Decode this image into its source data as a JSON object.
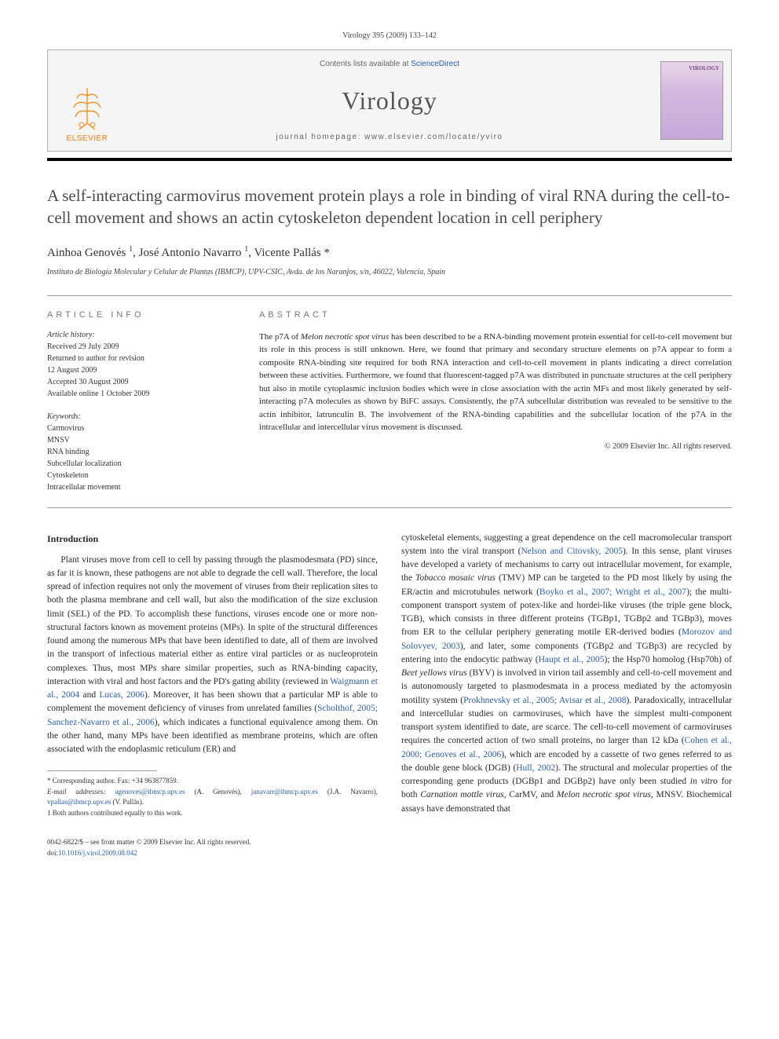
{
  "header": {
    "citation": "Virology 395 (2009) 133–142",
    "contents_prefix": "Contents lists available at ",
    "contents_link": "ScienceDirect",
    "journal_title": "Virology",
    "homepage_prefix": "journal homepage: ",
    "homepage_url": "www.elsevier.com/locate/yviro",
    "elsevier_label": "ELSEVIER",
    "cover_label": "VIROLOGY"
  },
  "article": {
    "title": "A self-interacting carmovirus movement protein plays a role in binding of viral RNA during the cell-to-cell movement and shows an actin cytoskeleton dependent location in cell periphery",
    "authors_html": "Ainhoa Genovés <sup>1</sup>, José Antonio Navarro <sup>1</sup>, Vicente Pallás *",
    "affiliation": "Instituto de Biología Molecular y Celular de Plantas (IBMCP), UPV-CSIC, Avda. de los Naranjos, s/n, 46022, Valencia, Spain"
  },
  "info": {
    "section_label": "ARTICLE INFO",
    "history_label": "Article history:",
    "history": [
      "Received 29 July 2009",
      "Returned to author for revision",
      "12 August 2009",
      "Accepted 30 August 2009",
      "Available online 1 October 2009"
    ],
    "keywords_label": "Keywords:",
    "keywords": [
      "Carmovirus",
      "MNSV",
      "RNA binding",
      "Subcellular localization",
      "Cytoskeleton",
      "Intracellular movement"
    ]
  },
  "abstract": {
    "section_label": "ABSTRACT",
    "text_html": "The p7A of <i>Melon necrotic spot virus</i> has been described to be a RNA-binding movement protein essential for cell-to-cell movement but its role in this process is still unknown. Here, we found that primary and secondary structure elements on p7A appear to form a composite RNA-binding site required for both RNA interaction and cell-to-cell movement in plants indicating a direct correlation between these activities. Furthermore, we found that fluorescent-tagged p7A was distributed in punctuate structures at the cell periphery but also in motile cytoplasmic inclusion bodies which were in close association with the actin MFs and most likely generated by self-interacting p7A molecules as shown by BiFC assays. Consistently, the p7A subcellular distribution was revealed to be sensitive to the actin inhibitor, latrunculin B. The involvement of the RNA-binding capabilities and the subcellular location of the p7A in the intracellular and intercellular virus movement is discussed.",
    "copyright": "© 2009 Elsevier Inc. All rights reserved."
  },
  "body": {
    "heading": "Introduction",
    "col1_html": "Plant viruses move from cell to cell by passing through the plasmodesmata (PD) since, as far it is known, these pathogens are not able to degrade the cell wall. Therefore, the local spread of infection requires not only the movement of viruses from their replication sites to both the plasma membrane and cell wall, but also the modification of the size exclusion limit (SEL) of the PD. To accomplish these functions, viruses encode one or more non-structural factors known as movement proteins (MPs). In spite of the structural differences found among the numerous MPs that have been identified to date, all of them are involved in the transport of infectious material either as entire viral particles or as nucleoprotein complexes. Thus, most MPs share similar properties, such as RNA-binding capacity, interaction with viral and host factors and the PD's gating ability (reviewed in <span class=\"ref-link\">Waigmann et al., 2004</span> and <span class=\"ref-link\">Lucas, 2006</span>). Moreover, it has been shown that a particular MP is able to complement the movement deficiency of viruses from unrelated families (<span class=\"ref-link\">Scholthof, 2005; Sanchez-Navarro et al., 2006</span>), which indicates a functional equivalence among them. On the other hand, many MPs have been identified as membrane proteins, which are often associated with the endoplasmic reticulum (ER) and",
    "col2_html": "cytoskeletal elements, suggesting a great dependence on the cell macromolecular transport system into the viral transport (<span class=\"ref-link\">Nelson and Citovsky, 2005</span>). In this sense, plant viruses have developed a variety of mechanisms to carry out intracellular movement, for example, the <i>Tobacco mosaic virus</i> (TMV) MP can be targeted to the PD most likely by using the ER/actin and microtubules network (<span class=\"ref-link\">Boyko et al., 2007; Wright et al., 2007</span>); the multi-component transport system of potex-like and hordei-like viruses (the triple gene block, TGB), which consists in three different proteins (TGBp1, TGBp2 and TGBp3), moves from ER to the cellular periphery generating motile ER-derived bodies (<span class=\"ref-link\">Morozov and Solovyev, 2003</span>), and later, some components (TGBp2 and TGBp3) are recycled by entering into the endocytic pathway (<span class=\"ref-link\">Haupt et al., 2005</span>); the Hsp70 homolog (Hsp70h) of <i>Beet yellows virus</i> (BYV) is involved in virion tail assembly and cell-to-cell movement and is autonomously targeted to plasmodesmata in a process mediated by the actomyosin motility system (<span class=\"ref-link\">Prokhnevsky et al., 2005; Avisar et al., 2008</span>). Paradoxically, intracellular and intercellular studies on carmoviruses, which have the simplest multi-component transport system identified to date, are scarce. The cell-to-cell movement of carmoviruses requires the concerted action of two small proteins, no larger than 12 kDa (<span class=\"ref-link\">Cohen et al., 2000; Genoves et al., 2006</span>), which are encoded by a cassette of two genes referred to as the double gene block (DGB) (<span class=\"ref-link\">Hull, 2002</span>). The structural and molecular properties of the corresponding gene products (DGBp1 and DGBp2) have only been studied <i>in vitro</i> for both <i>Carnation mottle virus</i>, CarMV, and <i>Melon necrotic spot virus</i>, MNSV. Biochemical assays have demonstrated that"
  },
  "footnotes": {
    "corresponding": "* Corresponding author. Fax: +34 963877859.",
    "emails_label": "E-mail addresses: ",
    "emails_html": "<a href=\"#\">agenoves@ibmcp.upv.es</a> (A. Genovés), <a href=\"#\">janavarr@ibmcp.upv.es</a> (J.A. Navarro), <a href=\"#\">vpallas@ibmcp.upv.es</a> (V. Pallás).",
    "equal": "1 Both authors contributed equally to this work."
  },
  "footer": {
    "line1": "0042-6822/$ – see front matter © 2009 Elsevier Inc. All rights reserved.",
    "doi_prefix": "doi:",
    "doi": "10.1016/j.virol.2009.08.042"
  },
  "colors": {
    "link": "#2a5db0",
    "elsevier_orange": "#ff7a00",
    "text": "#2a2a2a",
    "rule": "#999999",
    "masthead_bg": "#f5f5f5"
  }
}
